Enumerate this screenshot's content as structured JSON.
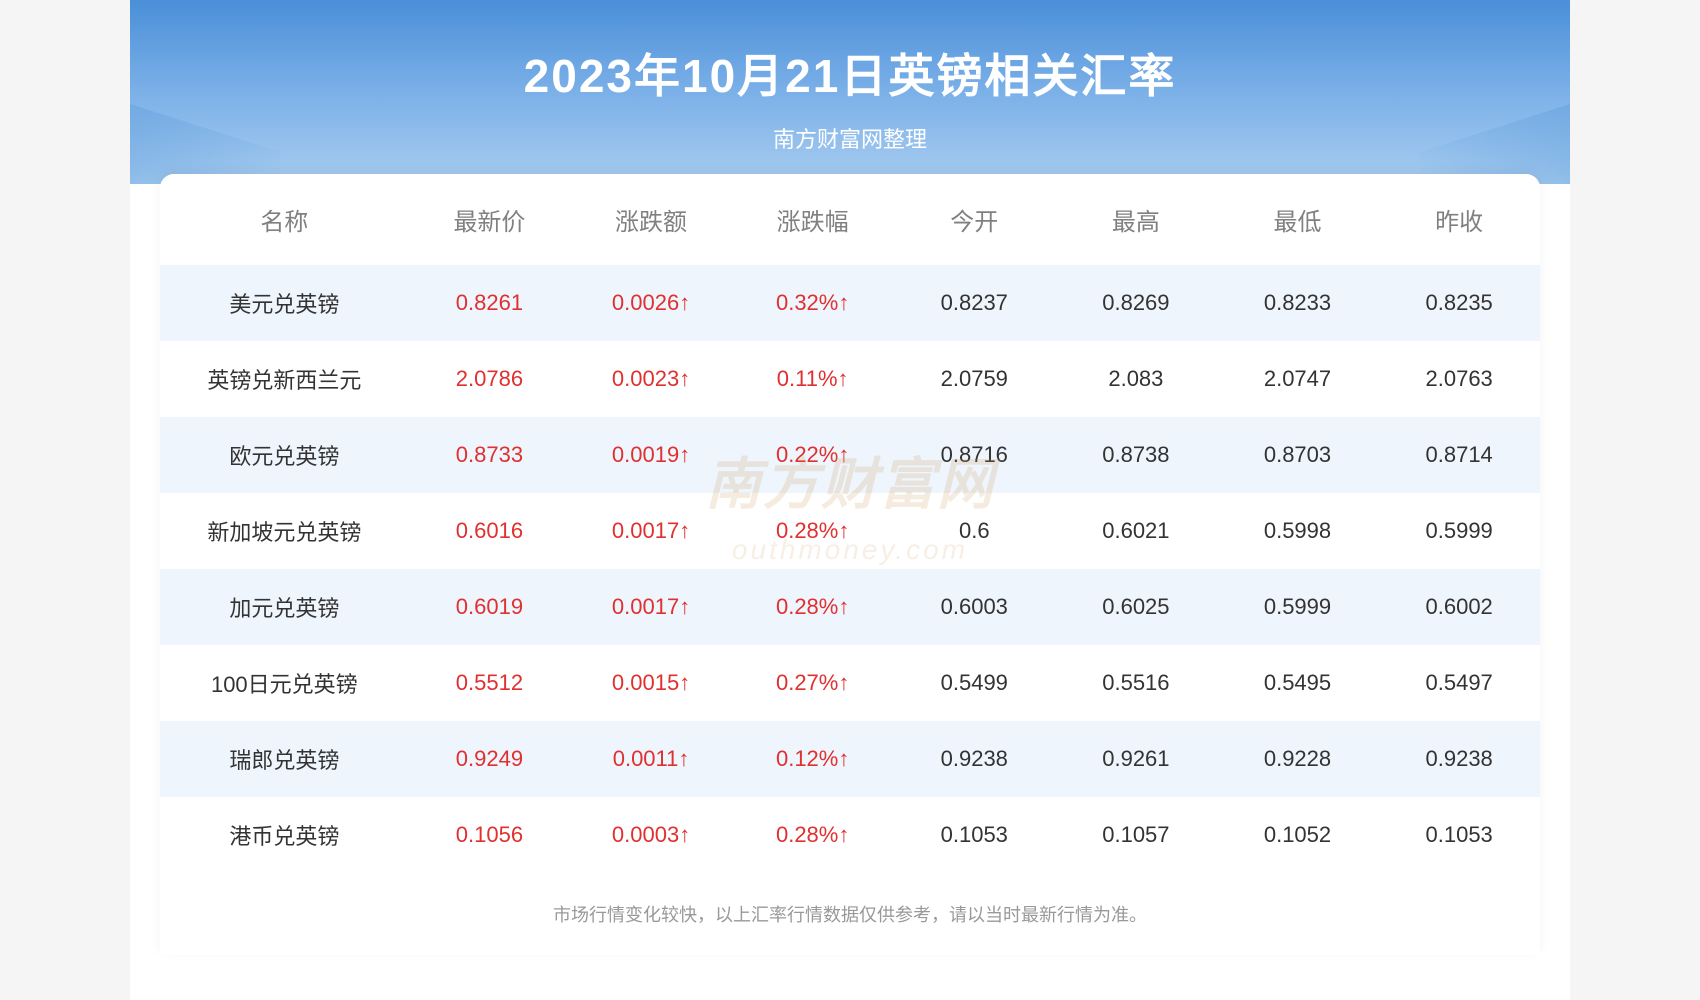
{
  "header": {
    "title": "2023年10月21日英镑相关汇率",
    "subtitle": "南方财富网整理",
    "bg_gradient_start": "#4a8fd8",
    "bg_gradient_mid": "#7bb0e8",
    "bg_gradient_end": "#a8cdf0",
    "title_color": "#ffffff",
    "title_fontsize": 46,
    "subtitle_fontsize": 22
  },
  "table": {
    "columns": [
      "名称",
      "最新价",
      "涨跌额",
      "涨跌幅",
      "今开",
      "最高",
      "最低",
      "昨收"
    ],
    "header_color": "#808080",
    "header_fontsize": 24,
    "body_fontsize": 22,
    "row_odd_bg": "#eef5fc",
    "row_even_bg": "#ffffff",
    "text_color": "#333333",
    "up_color": "#e03030",
    "arrow_up": "↑",
    "rows": [
      {
        "name": "美元兑英镑",
        "latest": "0.8261",
        "change": "0.0026↑",
        "pct": "0.32%↑",
        "open": "0.8237",
        "high": "0.8269",
        "low": "0.8233",
        "prev": "0.8235",
        "dir": "up"
      },
      {
        "name": "英镑兑新西兰元",
        "latest": "2.0786",
        "change": "0.0023↑",
        "pct": "0.11%↑",
        "open": "2.0759",
        "high": "2.083",
        "low": "2.0747",
        "prev": "2.0763",
        "dir": "up"
      },
      {
        "name": "欧元兑英镑",
        "latest": "0.8733",
        "change": "0.0019↑",
        "pct": "0.22%↑",
        "open": "0.8716",
        "high": "0.8738",
        "low": "0.8703",
        "prev": "0.8714",
        "dir": "up"
      },
      {
        "name": "新加坡元兑英镑",
        "latest": "0.6016",
        "change": "0.0017↑",
        "pct": "0.28%↑",
        "open": "0.6",
        "high": "0.6021",
        "low": "0.5998",
        "prev": "0.5999",
        "dir": "up"
      },
      {
        "name": "加元兑英镑",
        "latest": "0.6019",
        "change": "0.0017↑",
        "pct": "0.28%↑",
        "open": "0.6003",
        "high": "0.6025",
        "low": "0.5999",
        "prev": "0.6002",
        "dir": "up"
      },
      {
        "name": "100日元兑英镑",
        "latest": "0.5512",
        "change": "0.0015↑",
        "pct": "0.27%↑",
        "open": "0.5499",
        "high": "0.5516",
        "low": "0.5495",
        "prev": "0.5497",
        "dir": "up"
      },
      {
        "name": "瑞郎兑英镑",
        "latest": "0.9249",
        "change": "0.0011↑",
        "pct": "0.12%↑",
        "open": "0.9238",
        "high": "0.9261",
        "low": "0.9228",
        "prev": "0.9238",
        "dir": "up"
      },
      {
        "name": "港币兑英镑",
        "latest": "0.1056",
        "change": "0.0003↑",
        "pct": "0.28%↑",
        "open": "0.1053",
        "high": "0.1057",
        "low": "0.1052",
        "prev": "0.1053",
        "dir": "up"
      }
    ]
  },
  "footer": {
    "note": "市场行情变化较快，以上汇率行情数据仅供参考，请以当时最新行情为准。",
    "color": "#999999",
    "fontsize": 18
  },
  "watermark": {
    "main": "南方财富网",
    "sub": "outhmoney.com",
    "color": "rgba(200,150,80,0.18)"
  }
}
